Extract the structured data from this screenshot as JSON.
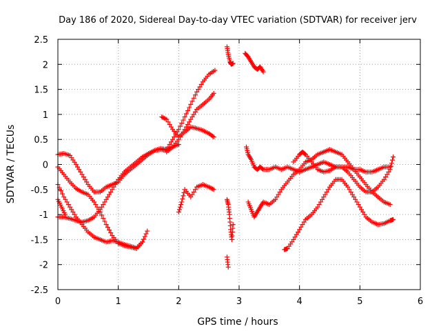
{
  "chart_data": {
    "type": "scatter",
    "title": "Day 186 of 2020, Sidereal Day-to-day VTEC variation (SDTVAR) for receiver jerv",
    "xlabel": "GPS time / hours",
    "ylabel": "SDTVAR / TECUs",
    "xlim": [
      0,
      6
    ],
    "ylim": [
      -2.5,
      2.5
    ],
    "xticks": [
      "0",
      "1",
      "2",
      "3",
      "4",
      "5",
      "6"
    ],
    "yticks": [
      "-2.5",
      "-2",
      "-1.5",
      "-1",
      "-0.5",
      "0",
      "0.5",
      "1",
      "1.5",
      "2",
      "2.5"
    ],
    "grid": true,
    "marker": "+",
    "color": "#ff0000",
    "series": [
      {
        "x": [
          0.0,
          0.1,
          0.2,
          0.3,
          0.4,
          0.5,
          0.6,
          0.7,
          0.8,
          0.9,
          1.0,
          1.1,
          1.2,
          1.3,
          1.4,
          1.5,
          1.6,
          1.7,
          1.8,
          1.9,
          2.0
        ],
        "y": [
          0.2,
          0.22,
          0.18,
          0.0,
          -0.2,
          -0.4,
          -0.55,
          -0.55,
          -0.45,
          -0.4,
          -0.35,
          -0.2,
          -0.1,
          0.0,
          0.1,
          0.2,
          0.28,
          0.32,
          0.3,
          0.35,
          0.4
        ]
      },
      {
        "x": [
          0.0,
          0.1,
          0.2,
          0.3,
          0.4,
          0.5,
          0.6,
          0.7,
          0.8,
          0.9,
          1.0,
          1.1,
          1.2,
          1.3,
          1.4,
          1.48
        ],
        "y": [
          -0.05,
          -0.2,
          -0.35,
          -0.48,
          -0.55,
          -0.6,
          -0.75,
          -0.95,
          -1.2,
          -1.42,
          -1.58,
          -1.62,
          -1.65,
          -1.68,
          -1.55,
          -1.33
        ]
      },
      {
        "x": [
          0.0,
          0.1,
          0.2,
          0.3,
          0.4,
          0.5,
          0.6,
          0.7,
          0.8,
          0.9,
          1.0,
          1.1,
          1.2,
          1.3,
          1.4
        ],
        "y": [
          -0.4,
          -0.65,
          -0.85,
          -1.05,
          -1.2,
          -1.35,
          -1.45,
          -1.5,
          -1.55,
          -1.52,
          -1.55,
          -1.6,
          -1.63,
          -1.67,
          -1.55
        ]
      },
      {
        "x": [
          0.0,
          0.1,
          0.2,
          0.3,
          0.4,
          0.5,
          0.6,
          0.7,
          0.8,
          0.9,
          1.0,
          1.1,
          1.2,
          1.3,
          1.4,
          1.5,
          1.6,
          1.7,
          1.8
        ],
        "y": [
          -1.05,
          -1.05,
          -1.08,
          -1.12,
          -1.15,
          -1.12,
          -1.05,
          -0.9,
          -0.7,
          -0.5,
          -0.3,
          -0.15,
          -0.05,
          0.05,
          0.15,
          0.22,
          0.28,
          0.3,
          0.28
        ]
      },
      {
        "x": [
          0.0,
          0.06,
          0.12
        ],
        "y": [
          -0.7,
          -0.85,
          -1.0
        ]
      },
      {
        "x": [
          1.72,
          1.8,
          1.9,
          2.0,
          2.1,
          2.2,
          2.3,
          2.4,
          2.5,
          2.58
        ],
        "y": [
          0.95,
          0.9,
          0.7,
          0.55,
          0.65,
          0.75,
          0.72,
          0.68,
          0.62,
          0.55
        ]
      },
      {
        "x": [
          1.7,
          1.8,
          1.9,
          2.0,
          2.1,
          2.2,
          2.3,
          2.4,
          2.5,
          2.6
        ],
        "y": [
          0.3,
          0.3,
          0.5,
          0.7,
          0.95,
          1.2,
          1.45,
          1.65,
          1.8,
          1.88
        ]
      },
      {
        "x": [
          1.8,
          1.9,
          2.0,
          2.1,
          2.2,
          2.3,
          2.4,
          2.5,
          2.58
        ],
        "y": [
          0.25,
          0.35,
          0.5,
          0.7,
          0.9,
          1.1,
          1.2,
          1.3,
          1.42
        ]
      },
      {
        "x": [
          2.0,
          2.05,
          2.1,
          2.2,
          2.3,
          2.4,
          2.5,
          2.58
        ],
        "y": [
          -0.95,
          -0.75,
          -0.5,
          -0.65,
          -0.45,
          -0.4,
          -0.45,
          -0.5
        ]
      },
      {
        "x": [
          2.8,
          2.82,
          2.85,
          2.87,
          2.9
        ],
        "y": [
          2.35,
          2.2,
          2.05,
          2.0,
          2.02
        ]
      },
      {
        "x": [
          2.8,
          2.82,
          2.84,
          2.86,
          2.88,
          2.9,
          2.8,
          2.82
        ],
        "y": [
          -0.7,
          -0.8,
          -1.0,
          -1.3,
          -1.5,
          -1.2,
          -1.85,
          -2.05
        ]
      },
      {
        "x": [
          3.1,
          3.15,
          3.2,
          3.25,
          3.3,
          3.35,
          3.4
        ],
        "y": [
          2.22,
          2.15,
          2.05,
          1.95,
          1.9,
          1.95,
          1.85
        ]
      },
      {
        "x": [
          3.12,
          3.15,
          3.2,
          3.25,
          3.3,
          3.35,
          3.4,
          3.5,
          3.6,
          3.7,
          3.8,
          3.9,
          4.0,
          4.1,
          4.2,
          4.3,
          4.4,
          4.5,
          4.6,
          4.7,
          4.8,
          4.9,
          5.0,
          5.1,
          5.2,
          5.3,
          5.4,
          5.5
        ],
        "y": [
          0.35,
          0.2,
          0.1,
          -0.05,
          -0.1,
          -0.05,
          -0.1,
          -0.1,
          -0.05,
          -0.1,
          -0.05,
          -0.1,
          -0.15,
          -0.1,
          -0.05,
          0.0,
          0.05,
          0.0,
          -0.05,
          -0.05,
          -0.05,
          -0.1,
          -0.1,
          -0.15,
          -0.15,
          -0.1,
          -0.05,
          -0.05
        ]
      },
      {
        "x": [
          3.15,
          3.2,
          3.25,
          3.3,
          3.35,
          3.4,
          3.5,
          3.6,
          3.7,
          3.8,
          3.9,
          4.0,
          4.1,
          4.2,
          4.3,
          4.4,
          4.5,
          4.6,
          4.7,
          4.8,
          4.9,
          5.0,
          5.1,
          5.2,
          5.3,
          5.4,
          5.5
        ],
        "y": [
          -0.75,
          -0.9,
          -1.05,
          -0.95,
          -0.85,
          -0.75,
          -0.8,
          -0.7,
          -0.5,
          -0.35,
          -0.2,
          -0.1,
          0.05,
          0.1,
          0.2,
          0.25,
          0.3,
          0.25,
          0.2,
          0.05,
          -0.1,
          -0.25,
          -0.4,
          -0.55,
          -0.65,
          -0.75,
          -0.8
        ]
      },
      {
        "x": [
          3.75,
          3.8,
          3.9,
          4.0,
          4.1,
          4.2,
          4.3,
          4.4,
          4.5,
          4.6,
          4.7,
          4.8,
          4.9,
          5.0,
          5.1,
          5.2,
          5.3,
          5.4,
          5.5,
          5.55
        ],
        "y": [
          -1.7,
          -1.68,
          -1.5,
          -1.3,
          -1.1,
          -1.0,
          -0.85,
          -0.65,
          -0.45,
          -0.3,
          -0.3,
          -0.45,
          -0.65,
          -0.85,
          -1.05,
          -1.15,
          -1.2,
          -1.18,
          -1.12,
          -1.1
        ]
      },
      {
        "x": [
          3.9,
          4.0,
          4.05,
          4.1,
          4.2,
          4.3,
          4.4,
          4.5,
          4.6,
          4.7,
          4.8,
          4.9,
          5.0,
          5.1,
          5.2,
          5.3,
          5.4,
          5.5,
          5.55
        ],
        "y": [
          0.05,
          0.2,
          0.25,
          0.2,
          0.05,
          -0.1,
          -0.15,
          -0.12,
          -0.05,
          -0.05,
          -0.15,
          -0.3,
          -0.45,
          -0.55,
          -0.55,
          -0.45,
          -0.3,
          -0.1,
          0.15
        ]
      }
    ]
  }
}
